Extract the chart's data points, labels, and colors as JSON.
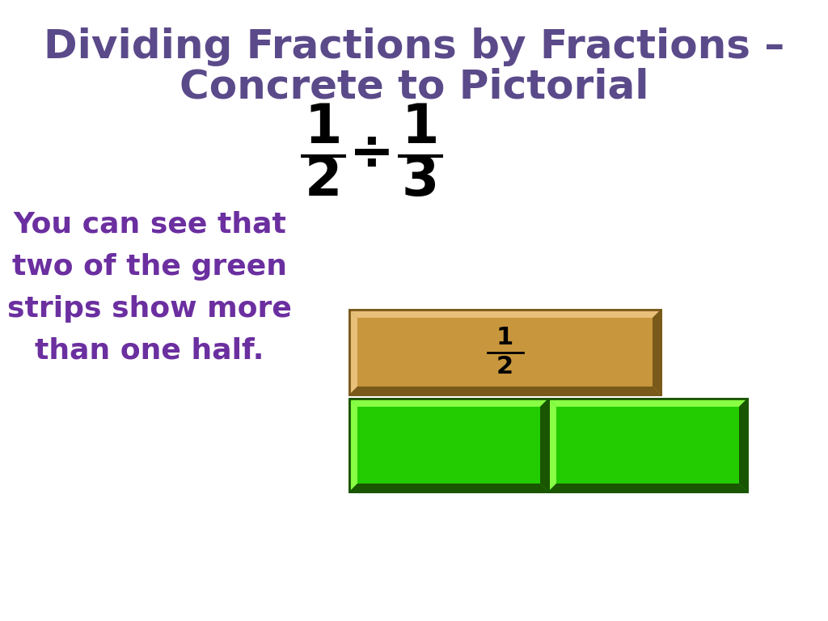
{
  "title_line1": "Dividing Fractions by Fractions –",
  "title_line2": "Concrete to Pictorial",
  "title_color": "#5b4a8a",
  "title_fontsize": 36,
  "fraction_color": "#000000",
  "body_text_line1": "You can see that",
  "body_text_line2": "two of the green",
  "body_text_line3": "strips show more",
  "body_text_line4": "than one half.",
  "body_text_color": "#6b2fa0",
  "body_fontsize": 26,
  "background_color": "#ffffff",
  "brown_face": "#c8963c",
  "brown_dark": "#7a5a1a",
  "brown_light": "#e8c07a",
  "green_face": "#22cc00",
  "green_dark": "#1a5500",
  "green_light": "#88ff44"
}
